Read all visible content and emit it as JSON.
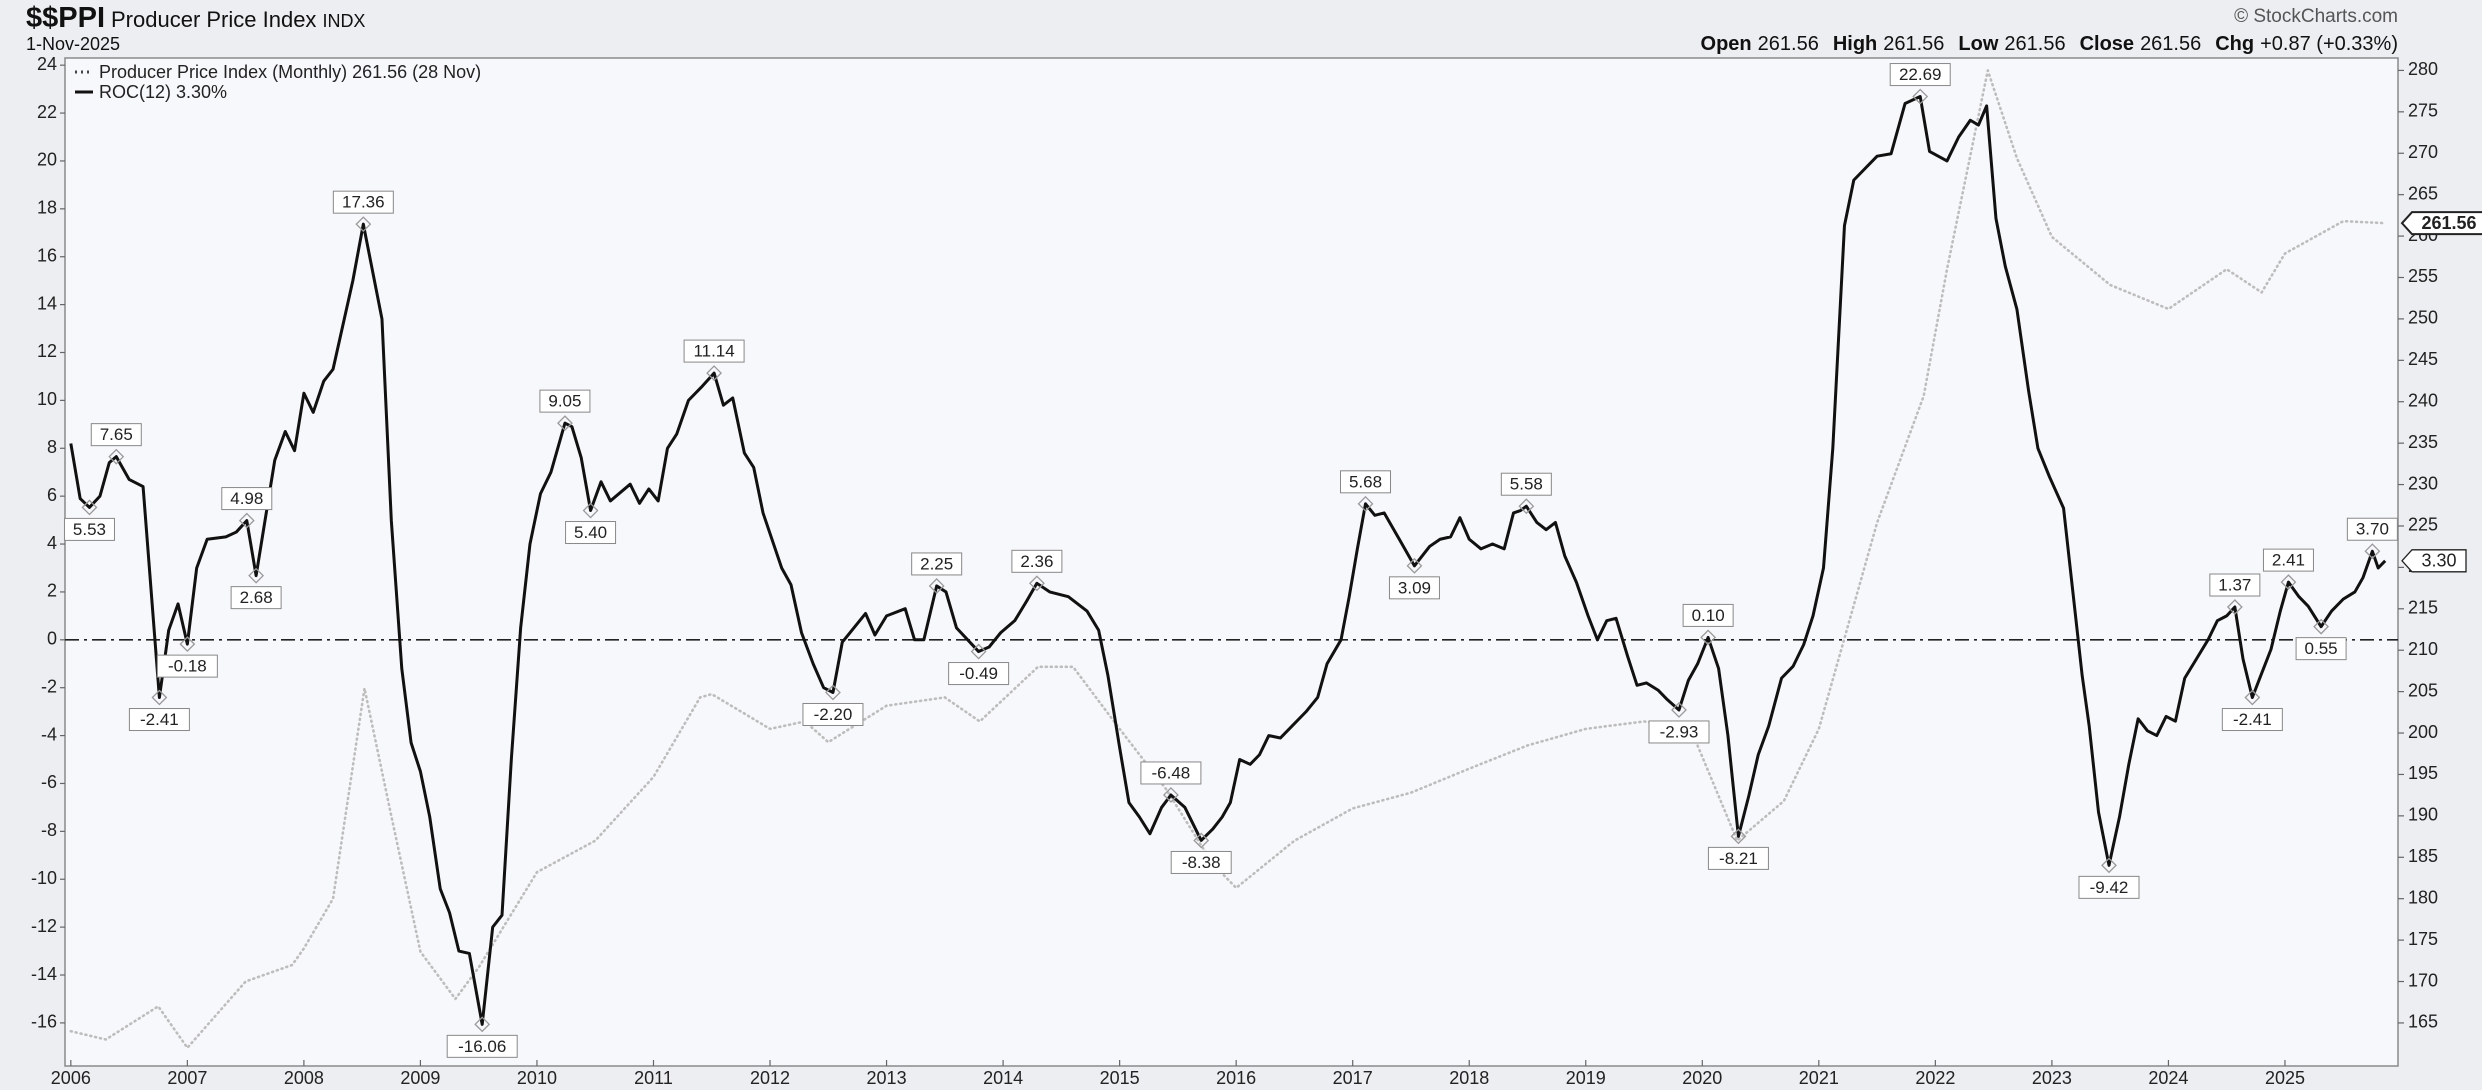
{
  "header": {
    "symbol": "$$PPI",
    "name": "Producer Price Index",
    "exchange": "INDX",
    "date": "1-Nov-2025",
    "brand": "© StockCharts.com",
    "ohlc": [
      {
        "label": "Open",
        "value": "261.56"
      },
      {
        "label": "High",
        "value": "261.56"
      },
      {
        "label": "Low",
        "value": "261.56"
      },
      {
        "label": "Close",
        "value": "261.56"
      },
      {
        "label": "Chg",
        "value": "+0.87 (+0.33%)"
      }
    ]
  },
  "chart_data": {
    "type": "line",
    "xlim": [
      2005.95,
      2025.97
    ],
    "xticks": [
      2006,
      2007,
      2008,
      2009,
      2010,
      2011,
      2012,
      2013,
      2014,
      2015,
      2016,
      2017,
      2018,
      2019,
      2020,
      2021,
      2022,
      2023,
      2024,
      2025
    ],
    "ylim": [
      -17.8,
      24.3
    ],
    "yticks": [
      -16,
      -14,
      -12,
      -10,
      -8,
      -6,
      -4,
      -2,
      0,
      2,
      4,
      6,
      8,
      10,
      12,
      14,
      16,
      18,
      20,
      22,
      24
    ],
    "y2lim": [
      159.8,
      281.5
    ],
    "y2ticks": [
      165,
      170,
      175,
      180,
      185,
      190,
      195,
      200,
      205,
      210,
      215,
      220,
      225,
      230,
      235,
      240,
      245,
      250,
      255,
      260,
      265,
      270,
      275,
      280
    ],
    "hline": 0,
    "grid": false,
    "legend": "top-left",
    "series": [
      {
        "name": "Producer Price Index (Monthly) 261.56 (28 Nov)",
        "color": "#bdbdbd",
        "style": "dotted",
        "axis": "y2",
        "x": [
          2006.0,
          2006.3,
          2006.75,
          2007.0,
          2007.5,
          2007.9,
          2008.0,
          2008.25,
          2008.52,
          2008.75,
          2009.0,
          2009.3,
          2009.5,
          2010.0,
          2010.5,
          2011.0,
          2011.4,
          2011.5,
          2012.0,
          2012.3,
          2012.5,
          2013.0,
          2013.5,
          2013.8,
          2014.3,
          2014.6,
          2015.0,
          2015.4,
          2015.8,
          2016.0,
          2016.5,
          2017.0,
          2017.5,
          2018.0,
          2018.5,
          2019.0,
          2019.5,
          2019.9,
          2020.3,
          2020.7,
          2021.0,
          2021.5,
          2021.9,
          2022.1,
          2022.45,
          2022.7,
          2023.0,
          2023.5,
          2024.0,
          2024.5,
          2024.8,
          2025.0,
          2025.5,
          2025.86
        ],
        "values": [
          164,
          163,
          167,
          162,
          170,
          172,
          174,
          180,
          205.4,
          190,
          173.6,
          167.9,
          171.7,
          183.2,
          187,
          194.7,
          204.3,
          204.7,
          200.5,
          201.4,
          198.9,
          203.3,
          204.3,
          201.4,
          208,
          208,
          200.5,
          193.2,
          184.2,
          181.3,
          187,
          190.9,
          192.8,
          195.7,
          198.5,
          200.5,
          201.4,
          200.5,
          187,
          191.8,
          200.5,
          225.4,
          240.7,
          256,
          280,
          269.4,
          259.9,
          254.1,
          251.2,
          256,
          253.2,
          257.9,
          261.8,
          261.56
        ],
        "value_labels": [
          null,
          null,
          null,
          null,
          null,
          null,
          null,
          null,
          null,
          null,
          null,
          null,
          null,
          null,
          null,
          null,
          null,
          null,
          null,
          null,
          null,
          null,
          null,
          null,
          null,
          null,
          null,
          null,
          null,
          null,
          null,
          null,
          null,
          null,
          null,
          null,
          null,
          null,
          null,
          null,
          null,
          null,
          null,
          null,
          null,
          null,
          null,
          null,
          null,
          null,
          null,
          null,
          null,
          "261.56"
        ]
      },
      {
        "name": "ROC(12) 3.30%",
        "color": "#111111",
        "style": "solid",
        "axis": "y",
        "x": [
          2006.0,
          2006.08,
          2006.16,
          2006.25,
          2006.33,
          2006.39,
          2006.5,
          2006.62,
          2006.76,
          2006.84,
          2006.92,
          2007.0,
          2007.08,
          2007.17,
          2007.33,
          2007.42,
          2007.51,
          2007.59,
          2007.75,
          2007.84,
          2007.92,
          2008.0,
          2008.08,
          2008.17,
          2008.25,
          2008.42,
          2008.51,
          2008.67,
          2008.75,
          2008.84,
          2008.92,
          2009.0,
          2009.08,
          2009.17,
          2009.25,
          2009.33,
          2009.42,
          2009.53,
          2009.62,
          2009.7,
          2009.78,
          2009.86,
          2009.94,
          2010.03,
          2010.12,
          2010.24,
          2010.3,
          2010.38,
          2010.46,
          2010.55,
          2010.63,
          2010.8,
          2010.88,
          2010.96,
          2011.04,
          2011.12,
          2011.2,
          2011.3,
          2011.42,
          2011.52,
          2011.6,
          2011.68,
          2011.78,
          2011.86,
          2011.94,
          2012.1,
          2012.18,
          2012.27,
          2012.37,
          2012.46,
          2012.54,
          2012.62,
          2012.72,
          2012.82,
          2012.9,
          2013.0,
          2013.16,
          2013.24,
          2013.32,
          2013.43,
          2013.51,
          2013.6,
          2013.79,
          2013.88,
          2013.98,
          2014.1,
          2014.2,
          2014.29,
          2014.4,
          2014.56,
          2014.72,
          2014.82,
          2014.9,
          2015.0,
          2015.08,
          2015.17,
          2015.26,
          2015.36,
          2015.44,
          2015.56,
          2015.7,
          2015.8,
          2015.88,
          2015.95,
          2016.03,
          2016.12,
          2016.2,
          2016.28,
          2016.38,
          2016.6,
          2016.7,
          2016.78,
          2016.9,
          2016.97,
          2017.04,
          2017.11,
          2017.19,
          2017.27,
          2017.4,
          2017.53,
          2017.66,
          2017.75,
          2017.84,
          2017.92,
          2018.0,
          2018.1,
          2018.2,
          2018.3,
          2018.38,
          2018.44,
          2018.49,
          2018.58,
          2018.66,
          2018.74,
          2018.82,
          2018.92,
          2019.02,
          2019.1,
          2019.18,
          2019.26,
          2019.36,
          2019.44,
          2019.52,
          2019.62,
          2019.7,
          2019.8,
          2019.88,
          2019.96,
          2020.05,
          2020.14,
          2020.22,
          2020.31,
          2020.4,
          2020.48,
          2020.57,
          2020.68,
          2020.78,
          2020.87,
          2020.95,
          2021.04,
          2021.12,
          2021.22,
          2021.3,
          2021.4,
          2021.5,
          2021.62,
          2021.74,
          2021.87,
          2021.95,
          2022.1,
          2022.2,
          2022.3,
          2022.37,
          2022.44,
          2022.52,
          2022.6,
          2022.7,
          2022.8,
          2022.88,
          2022.98,
          2023.1,
          2023.18,
          2023.26,
          2023.32,
          2023.4,
          2023.49,
          2023.58,
          2023.66,
          2023.74,
          2023.82,
          2023.9,
          2023.98,
          2024.06,
          2024.14,
          2024.24,
          2024.34,
          2024.42,
          2024.5,
          2024.57,
          2024.64,
          2024.72,
          2024.8,
          2024.88,
          2024.96,
          2025.03,
          2025.12,
          2025.2,
          2025.31,
          2025.4,
          2025.5,
          2025.6,
          2025.67,
          2025.75,
          2025.8,
          2025.86
        ],
        "values": [
          8.2,
          5.9,
          5.53,
          6.0,
          7.4,
          7.65,
          6.7,
          6.4,
          -2.41,
          0.4,
          1.5,
          -0.18,
          3.0,
          4.2,
          4.3,
          4.5,
          4.98,
          2.68,
          7.5,
          8.7,
          7.9,
          10.3,
          9.5,
          10.8,
          11.3,
          15.0,
          17.36,
          13.4,
          5.0,
          -1.2,
          -4.3,
          -5.5,
          -7.4,
          -10.4,
          -11.4,
          -13.0,
          -13.1,
          -16.06,
          -12.0,
          -11.5,
          -5.0,
          0.5,
          4.0,
          6.1,
          7.0,
          9.05,
          8.9,
          7.6,
          5.4,
          6.6,
          5.8,
          6.5,
          5.7,
          6.3,
          5.8,
          8.0,
          8.6,
          10.0,
          10.6,
          11.14,
          9.8,
          10.1,
          7.8,
          7.2,
          5.3,
          3.0,
          2.3,
          0.3,
          -1.0,
          -2.0,
          -2.2,
          -0.1,
          0.5,
          1.1,
          0.2,
          1.0,
          1.3,
          0.0,
          0.0,
          2.25,
          2.0,
          0.5,
          -0.49,
          -0.3,
          0.3,
          0.8,
          1.6,
          2.36,
          2.0,
          1.8,
          1.2,
          0.4,
          -1.5,
          -4.5,
          -6.8,
          -7.4,
          -8.1,
          -7.0,
          -6.48,
          -7.0,
          -8.38,
          -7.9,
          -7.4,
          -6.8,
          -5.0,
          -5.2,
          -4.8,
          -4.0,
          -4.1,
          -3.0,
          -2.4,
          -1.0,
          0.0,
          1.8,
          3.8,
          5.68,
          5.2,
          5.3,
          4.2,
          3.09,
          3.9,
          4.2,
          4.3,
          5.1,
          4.2,
          3.8,
          4.0,
          3.8,
          5.3,
          5.4,
          5.58,
          4.9,
          4.6,
          4.9,
          3.5,
          2.4,
          1.0,
          0.0,
          0.8,
          0.9,
          -0.7,
          -1.9,
          -1.8,
          -2.1,
          -2.5,
          -2.93,
          -1.7,
          -1.0,
          0.1,
          -1.2,
          -4.0,
          -8.21,
          -6.5,
          -4.8,
          -3.6,
          -1.6,
          -1.1,
          -0.2,
          1.0,
          3.0,
          8.0,
          17.3,
          19.2,
          19.7,
          20.2,
          20.3,
          22.4,
          22.69,
          20.4,
          20.0,
          21.0,
          21.7,
          21.5,
          22.3,
          17.6,
          15.6,
          13.8,
          10.4,
          8.0,
          6.8,
          5.5,
          2.0,
          -1.5,
          -3.6,
          -7.2,
          -9.42,
          -7.4,
          -5.2,
          -3.3,
          -3.8,
          -4.0,
          -3.2,
          -3.4,
          -1.6,
          -0.8,
          0.0,
          0.8,
          1.0,
          1.37,
          -0.8,
          -2.41,
          -1.4,
          -0.4,
          1.2,
          2.41,
          1.8,
          1.4,
          0.55,
          1.2,
          1.7,
          2.0,
          2.6,
          3.7,
          3.0,
          3.3
        ],
        "value_labels": [
          null,
          null,
          "5.53",
          null,
          null,
          "7.65",
          null,
          null,
          "-2.41",
          null,
          null,
          "-0.18",
          null,
          null,
          null,
          null,
          "4.98",
          "2.68",
          null,
          null,
          null,
          null,
          null,
          null,
          null,
          null,
          "17.36",
          null,
          null,
          null,
          null,
          null,
          null,
          null,
          null,
          null,
          null,
          "-16.06",
          null,
          null,
          null,
          null,
          null,
          null,
          null,
          "9.05",
          null,
          null,
          "5.40",
          null,
          null,
          null,
          null,
          null,
          null,
          null,
          null,
          null,
          null,
          "11.14",
          null,
          null,
          null,
          null,
          null,
          null,
          null,
          null,
          null,
          null,
          "-2.20",
          null,
          null,
          null,
          null,
          null,
          null,
          null,
          null,
          "2.25",
          null,
          null,
          "-0.49",
          null,
          null,
          null,
          null,
          "2.36",
          null,
          null,
          null,
          null,
          null,
          null,
          null,
          null,
          null,
          null,
          "-6.48",
          null,
          "-8.38",
          null,
          null,
          null,
          null,
          null,
          null,
          null,
          null,
          null,
          null,
          null,
          null,
          null,
          null,
          "5.68",
          null,
          null,
          null,
          "3.09",
          null,
          null,
          null,
          null,
          null,
          null,
          null,
          null,
          null,
          null,
          "5.58",
          null,
          null,
          null,
          null,
          null,
          null,
          null,
          null,
          null,
          null,
          null,
          null,
          null,
          null,
          "-2.93",
          null,
          null,
          "0.10",
          null,
          null,
          "-8.21",
          null,
          null,
          null,
          null,
          null,
          null,
          null,
          null,
          null,
          null,
          null,
          null,
          null,
          null,
          null,
          "22.69",
          null,
          null,
          null,
          null,
          null,
          null,
          null,
          null,
          null,
          null,
          null,
          null,
          null,
          null,
          null,
          null,
          null,
          "-9.42",
          null,
          null,
          null,
          null,
          null,
          null,
          null,
          null,
          null,
          null,
          null,
          null,
          "1.37",
          null,
          "-2.41",
          null,
          null,
          null,
          "2.41",
          null,
          null,
          "0.55",
          null,
          null,
          null,
          null,
          "3.70",
          null,
          "3.30"
        ]
      }
    ]
  }
}
